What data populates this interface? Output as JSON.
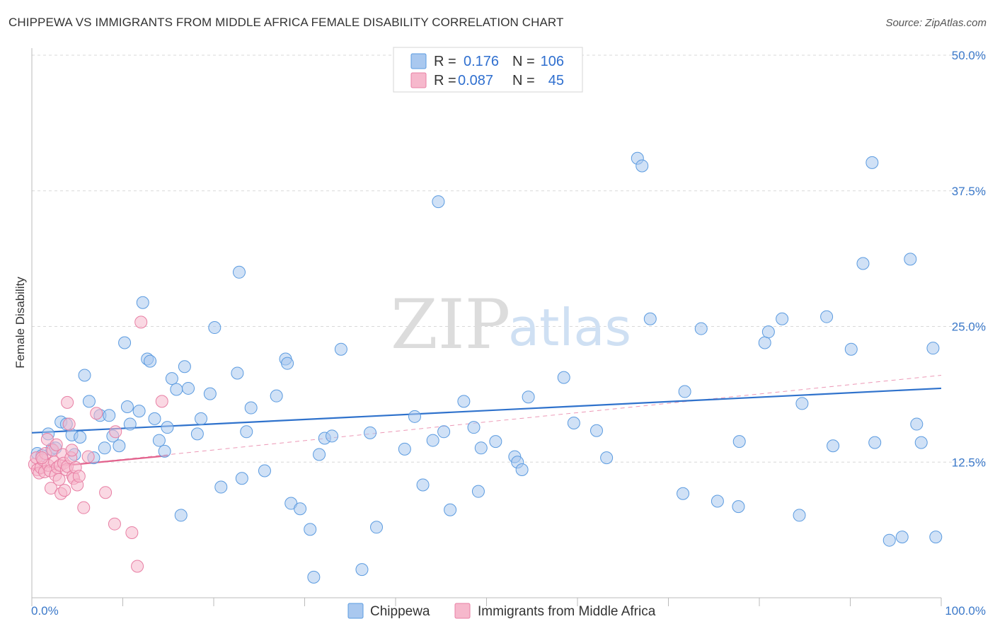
{
  "title": "CHIPPEWA VS IMMIGRANTS FROM MIDDLE AFRICA FEMALE DISABILITY CORRELATION CHART",
  "source": "Source: ZipAtlas.com",
  "watermark": {
    "zip": "ZIP",
    "atlas": "atlas"
  },
  "legend": {
    "r_label": "R =",
    "n_label": "N =",
    "rows": [
      {
        "r": "0.176",
        "n": "106",
        "color": "#a9c8ef"
      },
      {
        "r": "0.087",
        "n": "45",
        "color": "#f6b8cc"
      }
    ]
  },
  "chart_data": {
    "type": "scatter",
    "xlabel": "",
    "ylabel": "Female Disability",
    "xlim": [
      0,
      100
    ],
    "ylim": [
      0,
      50
    ],
    "x_tick_labels": [
      "0.0%",
      "100.0%"
    ],
    "y_ticks": [
      12.5,
      25.0,
      37.5,
      50.0
    ],
    "y_tick_labels": [
      "12.5%",
      "25.0%",
      "37.5%",
      "50.0%"
    ],
    "grid": true,
    "legend_position": "top-center",
    "series": [
      {
        "name": "Chippewa",
        "color": "#5b9be0",
        "fill": "#a9c8ef",
        "trend": {
          "x": [
            0,
            100
          ],
          "y": [
            15.2,
            19.3
          ],
          "style": "solid"
        },
        "points": [
          [
            0.6,
            13.3
          ],
          [
            1.1,
            13.1
          ],
          [
            1.8,
            15.1
          ],
          [
            2.2,
            13.7
          ],
          [
            2.6,
            13.8
          ],
          [
            3.2,
            16.2
          ],
          [
            3.8,
            16.0
          ],
          [
            4.4,
            15.0
          ],
          [
            4.7,
            13.2
          ],
          [
            5.3,
            14.8
          ],
          [
            5.8,
            20.5
          ],
          [
            6.3,
            18.1
          ],
          [
            6.8,
            12.9
          ],
          [
            7.5,
            16.8
          ],
          [
            8.0,
            13.8
          ],
          [
            8.5,
            16.8
          ],
          [
            8.9,
            14.9
          ],
          [
            9.6,
            14.0
          ],
          [
            10.2,
            23.5
          ],
          [
            10.5,
            17.6
          ],
          [
            10.8,
            16.0
          ],
          [
            11.8,
            17.2
          ],
          [
            12.2,
            27.2
          ],
          [
            12.7,
            22.0
          ],
          [
            13.0,
            21.8
          ],
          [
            13.5,
            16.5
          ],
          [
            14.0,
            14.5
          ],
          [
            14.6,
            13.5
          ],
          [
            14.9,
            15.7
          ],
          [
            15.4,
            20.2
          ],
          [
            15.9,
            19.2
          ],
          [
            16.4,
            7.6
          ],
          [
            16.8,
            21.3
          ],
          [
            17.2,
            19.3
          ],
          [
            18.2,
            15.1
          ],
          [
            18.6,
            16.5
          ],
          [
            19.6,
            18.8
          ],
          [
            20.1,
            24.9
          ],
          [
            20.8,
            10.2
          ],
          [
            22.6,
            20.7
          ],
          [
            22.8,
            30.0
          ],
          [
            23.1,
            11.0
          ],
          [
            23.6,
            15.3
          ],
          [
            24.1,
            17.5
          ],
          [
            25.6,
            11.7
          ],
          [
            26.9,
            18.6
          ],
          [
            27.9,
            22.0
          ],
          [
            28.1,
            21.6
          ],
          [
            28.5,
            8.7
          ],
          [
            29.5,
            8.2
          ],
          [
            30.6,
            6.3
          ],
          [
            31.0,
            1.9
          ],
          [
            31.6,
            13.2
          ],
          [
            32.2,
            14.7
          ],
          [
            33.0,
            14.9
          ],
          [
            34.0,
            22.9
          ],
          [
            36.3,
            2.6
          ],
          [
            37.2,
            15.2
          ],
          [
            37.9,
            6.5
          ],
          [
            41.0,
            13.7
          ],
          [
            42.1,
            16.7
          ],
          [
            43.0,
            10.4
          ],
          [
            44.1,
            14.5
          ],
          [
            44.7,
            36.5
          ],
          [
            45.3,
            15.3
          ],
          [
            46.0,
            8.1
          ],
          [
            47.5,
            18.1
          ],
          [
            48.6,
            15.7
          ],
          [
            49.1,
            9.8
          ],
          [
            49.4,
            13.8
          ],
          [
            51.0,
            14.4
          ],
          [
            53.1,
            13.0
          ],
          [
            53.4,
            12.5
          ],
          [
            53.9,
            11.8
          ],
          [
            54.6,
            18.5
          ],
          [
            58.5,
            20.3
          ],
          [
            59.6,
            16.1
          ],
          [
            62.1,
            15.4
          ],
          [
            63.2,
            12.9
          ],
          [
            66.6,
            40.5
          ],
          [
            67.1,
            39.8
          ],
          [
            68.0,
            25.7
          ],
          [
            71.6,
            9.6
          ],
          [
            71.8,
            19.0
          ],
          [
            73.6,
            24.8
          ],
          [
            75.4,
            8.9
          ],
          [
            77.8,
            14.4
          ],
          [
            77.7,
            8.4
          ],
          [
            80.6,
            23.5
          ],
          [
            81.0,
            24.5
          ],
          [
            82.5,
            25.7
          ],
          [
            84.4,
            7.6
          ],
          [
            84.7,
            17.9
          ],
          [
            87.4,
            25.9
          ],
          [
            88.1,
            14.0
          ],
          [
            90.1,
            22.9
          ],
          [
            91.4,
            30.8
          ],
          [
            92.4,
            40.1
          ],
          [
            92.7,
            14.3
          ],
          [
            94.3,
            5.3
          ],
          [
            95.7,
            5.6
          ],
          [
            96.6,
            31.2
          ],
          [
            97.3,
            16.0
          ],
          [
            97.8,
            14.3
          ],
          [
            99.1,
            23.0
          ],
          [
            99.4,
            5.6
          ]
        ]
      },
      {
        "name": "Immigrants from Middle Africa",
        "color": "#e87fa4",
        "fill": "#f6b8cc",
        "trend": {
          "x": [
            0,
            15
          ],
          "y": [
            11.9,
            13.1
          ],
          "style": "solid"
        },
        "trend_dashed": {
          "x": [
            0,
            100
          ],
          "y": [
            11.9,
            20.5
          ],
          "style": "dashed"
        },
        "points": [
          [
            0.3,
            12.3
          ],
          [
            0.5,
            12.9
          ],
          [
            0.6,
            11.8
          ],
          [
            0.8,
            11.5
          ],
          [
            1.0,
            12.0
          ],
          [
            1.2,
            12.7
          ],
          [
            1.4,
            11.6
          ],
          [
            1.5,
            13.3
          ],
          [
            1.7,
            14.6
          ],
          [
            1.8,
            12.2
          ],
          [
            2.0,
            11.7
          ],
          [
            2.1,
            10.1
          ],
          [
            2.3,
            13.6
          ],
          [
            2.5,
            12.5
          ],
          [
            2.6,
            11.3
          ],
          [
            2.8,
            12.0
          ],
          [
            3.0,
            10.9
          ],
          [
            3.1,
            12.2
          ],
          [
            3.2,
            9.6
          ],
          [
            3.4,
            13.2
          ],
          [
            3.5,
            12.4
          ],
          [
            3.6,
            9.9
          ],
          [
            3.8,
            11.8
          ],
          [
            3.9,
            12.1
          ],
          [
            4.1,
            16.0
          ],
          [
            4.3,
            12.9
          ],
          [
            4.5,
            11.2
          ],
          [
            4.6,
            11.0
          ],
          [
            4.8,
            12.0
          ],
          [
            5.0,
            10.4
          ],
          [
            5.2,
            11.2
          ],
          [
            5.7,
            8.3
          ],
          [
            6.2,
            13.0
          ],
          [
            7.1,
            17.0
          ],
          [
            8.1,
            9.7
          ],
          [
            9.1,
            6.8
          ],
          [
            9.2,
            15.3
          ],
          [
            11.0,
            6.0
          ],
          [
            11.6,
            2.9
          ],
          [
            12.0,
            25.4
          ],
          [
            14.3,
            18.1
          ],
          [
            3.9,
            18.0
          ],
          [
            1.1,
            12.9
          ],
          [
            2.7,
            14.1
          ],
          [
            4.4,
            13.6
          ]
        ]
      }
    ]
  }
}
